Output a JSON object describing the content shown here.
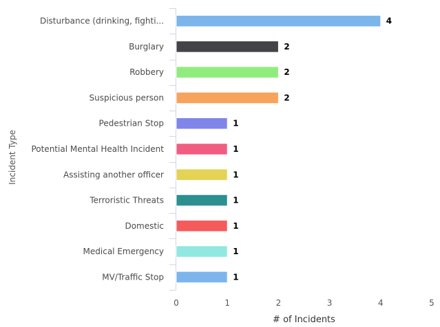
{
  "chart_data": {
    "type": "bar",
    "orientation": "horizontal",
    "title": "",
    "xlabel": "# of Incidents",
    "ylabel": "Incident Type",
    "xlim": [
      0,
      5
    ],
    "xticks": [
      0,
      1,
      2,
      3,
      4,
      5
    ],
    "grid": false,
    "legend": "none",
    "categories": [
      "Disturbance (drinking, fighti...",
      "Burglary",
      "Robbery",
      "Suspicious person",
      "Pedestrian Stop",
      "Potential Mental Health Incident",
      "Assisting another officer",
      "Terroristic Threats",
      "Domestic",
      "Medical Emergency",
      "MV/Traffic Stop"
    ],
    "values": [
      4,
      2,
      2,
      2,
      1,
      1,
      1,
      1,
      1,
      1,
      1
    ],
    "colors": [
      "#7cb5ec",
      "#434348",
      "#90ed7d",
      "#f7a35c",
      "#8085e9",
      "#f15c80",
      "#e4d354",
      "#2b908f",
      "#f45b5b",
      "#91e8e1",
      "#7cb5ec"
    ]
  }
}
